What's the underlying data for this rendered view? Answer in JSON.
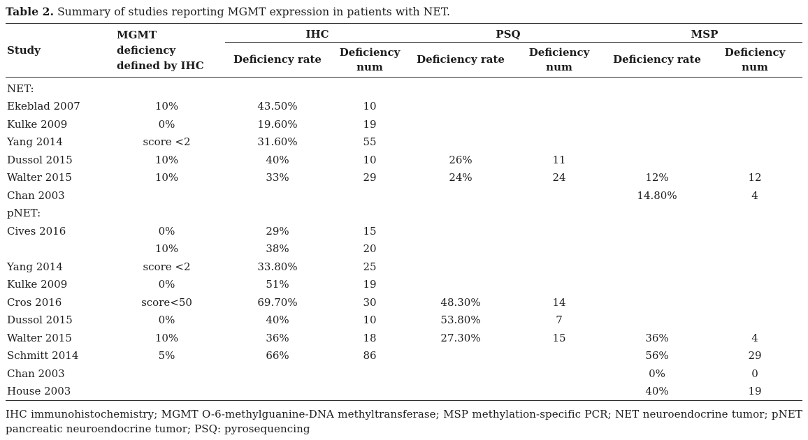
{
  "title": {
    "label": "Table 2.",
    "text": " Summary of studies reporting MGMT expression in patients with NET."
  },
  "table": {
    "columns": {
      "study": "Study",
      "mgmt": "MGMT deficiency defined by IHC",
      "groups": [
        {
          "name": "IHC",
          "rate": "Deficiency rate",
          "num": "Deficiency num"
        },
        {
          "name": "PSQ",
          "rate": "Deficiency rate",
          "num": "Deficiency num"
        },
        {
          "name": "MSP",
          "rate": "Deficiency rate",
          "num": "Deficiency num"
        }
      ]
    },
    "rows": [
      {
        "section": true,
        "study": "NET:",
        "mgmt": "",
        "ihc_rate": "",
        "ihc_num": "",
        "psq_rate": "",
        "psq_num": "",
        "msp_rate": "",
        "msp_num": ""
      },
      {
        "section": false,
        "study": "Ekeblad 2007",
        "mgmt": "10%",
        "ihc_rate": "43.50%",
        "ihc_num": "10",
        "psq_rate": "",
        "psq_num": "",
        "msp_rate": "",
        "msp_num": ""
      },
      {
        "section": false,
        "study": "Kulke 2009",
        "mgmt": "0%",
        "ihc_rate": "19.60%",
        "ihc_num": "19",
        "psq_rate": "",
        "psq_num": "",
        "msp_rate": "",
        "msp_num": ""
      },
      {
        "section": false,
        "study": "Yang 2014",
        "mgmt": "score <2",
        "ihc_rate": "31.60%",
        "ihc_num": "55",
        "psq_rate": "",
        "psq_num": "",
        "msp_rate": "",
        "msp_num": ""
      },
      {
        "section": false,
        "study": "Dussol 2015",
        "mgmt": "10%",
        "ihc_rate": "40%",
        "ihc_num": "10",
        "psq_rate": "26%",
        "psq_num": "11",
        "msp_rate": "",
        "msp_num": ""
      },
      {
        "section": false,
        "study": "Walter 2015",
        "mgmt": "10%",
        "ihc_rate": "33%",
        "ihc_num": "29",
        "psq_rate": "24%",
        "psq_num": "24",
        "msp_rate": "12%",
        "msp_num": "12"
      },
      {
        "section": false,
        "study": "Chan 2003",
        "mgmt": "",
        "ihc_rate": "",
        "ihc_num": "",
        "psq_rate": "",
        "psq_num": "",
        "msp_rate": "14.80%",
        "msp_num": "4"
      },
      {
        "section": true,
        "study": "pNET:",
        "mgmt": "",
        "ihc_rate": "",
        "ihc_num": "",
        "psq_rate": "",
        "psq_num": "",
        "msp_rate": "",
        "msp_num": ""
      },
      {
        "section": false,
        "study": "Cives 2016",
        "mgmt": "0%",
        "ihc_rate": "29%",
        "ihc_num": "15",
        "psq_rate": "",
        "psq_num": "",
        "msp_rate": "",
        "msp_num": ""
      },
      {
        "section": false,
        "study": "",
        "mgmt": "10%",
        "ihc_rate": "38%",
        "ihc_num": "20",
        "psq_rate": "",
        "psq_num": "",
        "msp_rate": "",
        "msp_num": ""
      },
      {
        "section": false,
        "study": "Yang 2014",
        "mgmt": "score <2",
        "ihc_rate": "33.80%",
        "ihc_num": "25",
        "psq_rate": "",
        "psq_num": "",
        "msp_rate": "",
        "msp_num": ""
      },
      {
        "section": false,
        "study": "Kulke 2009",
        "mgmt": "0%",
        "ihc_rate": "51%",
        "ihc_num": "19",
        "psq_rate": "",
        "psq_num": "",
        "msp_rate": "",
        "msp_num": ""
      },
      {
        "section": false,
        "study": "Cros 2016",
        "mgmt": "score<50",
        "ihc_rate": "69.70%",
        "ihc_num": "30",
        "psq_rate": "48.30%",
        "psq_num": "14",
        "msp_rate": "",
        "msp_num": ""
      },
      {
        "section": false,
        "study": "Dussol 2015",
        "mgmt": "0%",
        "ihc_rate": "40%",
        "ihc_num": "10",
        "psq_rate": "53.80%",
        "psq_num": "7",
        "msp_rate": "",
        "msp_num": ""
      },
      {
        "section": false,
        "study": "Walter 2015",
        "mgmt": "10%",
        "ihc_rate": "36%",
        "ihc_num": "18",
        "psq_rate": "27.30%",
        "psq_num": "15",
        "msp_rate": "36%",
        "msp_num": "4"
      },
      {
        "section": false,
        "study": "Schmitt 2014",
        "mgmt": "5%",
        "ihc_rate": "66%",
        "ihc_num": "86",
        "psq_rate": "",
        "psq_num": "",
        "msp_rate": "56%",
        "msp_num": "29"
      },
      {
        "section": false,
        "study": "Chan 2003",
        "mgmt": "",
        "ihc_rate": "",
        "ihc_num": "",
        "psq_rate": "",
        "psq_num": "",
        "msp_rate": "0%",
        "msp_num": "0"
      },
      {
        "section": false,
        "study": "House 2003",
        "mgmt": "",
        "ihc_rate": "",
        "ihc_num": "",
        "psq_rate": "",
        "psq_num": "",
        "msp_rate": "40%",
        "msp_num": "19"
      }
    ]
  },
  "footnote": "IHC immunohistochemistry; MGMT O-6-methylguanine-DNA methyltransferase; MSP methylation-specific PCR; NET neuroendocrine tumor; pNET pancreatic neuroendocrine tumor; PSQ: pyrosequencing",
  "colors": {
    "text": "#1c1c1c",
    "rule": "#2e2e2e",
    "background": "#ffffff"
  }
}
